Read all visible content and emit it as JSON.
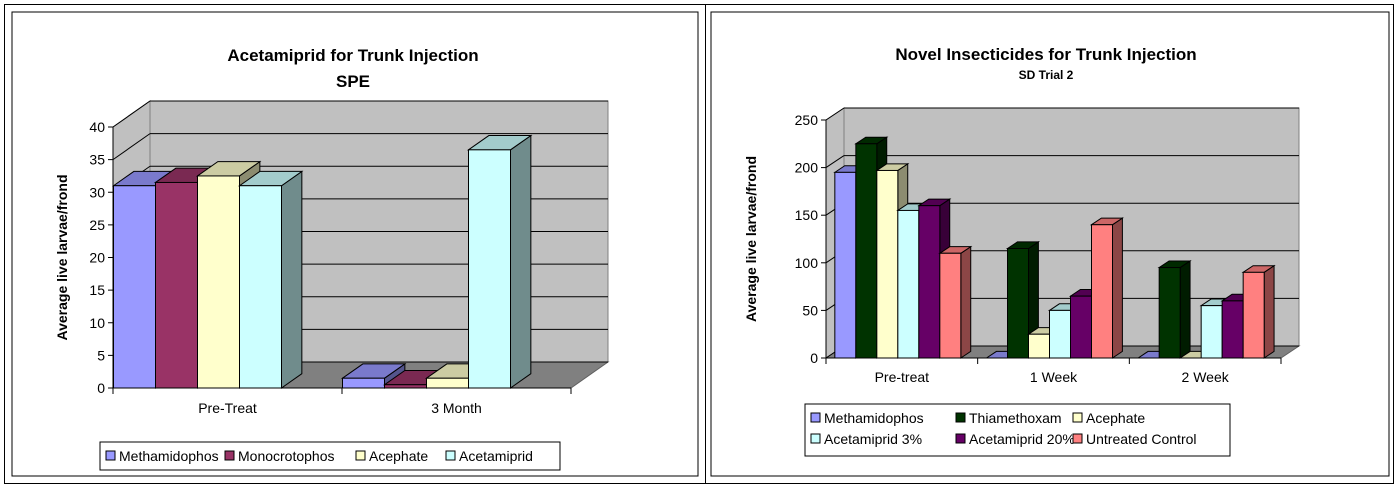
{
  "chart_data": [
    {
      "type": "bar",
      "title": "Acetamiprid for Trunk Injection",
      "subtitle": "SPE",
      "xlabel": "",
      "ylabel": "Average live larvae/frond",
      "ylim": [
        0,
        40
      ],
      "yticks": [
        "0",
        "5",
        "10",
        "15",
        "20",
        "25",
        "30",
        "35",
        "40"
      ],
      "categories": [
        "Pre-Treat",
        "3 Month"
      ],
      "series": [
        {
          "name": "Methamidophos",
          "values": [
            31,
            1.5
          ],
          "color": "#9999FF"
        },
        {
          "name": "Monocrotophos",
          "values": [
            31.5,
            0.5
          ],
          "color": "#993366"
        },
        {
          "name": "Acephate",
          "values": [
            32.5,
            1.5
          ],
          "color": "#FFFFCC"
        },
        {
          "name": "Acetamiprid",
          "values": [
            31,
            36.5
          ],
          "color": "#CCFFFF"
        }
      ],
      "grid": true,
      "legend_position": "bottom"
    },
    {
      "type": "bar",
      "title": "Novel Insecticides for Trunk Injection",
      "subtitle": "SD Trial 2",
      "xlabel": "",
      "ylabel": "Average live larvae/frond",
      "ylim": [
        0,
        250
      ],
      "yticks": [
        "0",
        "50",
        "100",
        "150",
        "200",
        "250"
      ],
      "categories": [
        "Pre-treat",
        "1 Week",
        "2 Week"
      ],
      "series": [
        {
          "name": "Methamidophos",
          "values": [
            195,
            0,
            0
          ],
          "color": "#9999FF"
        },
        {
          "name": "Thiamethoxam",
          "values": [
            225,
            115,
            95
          ],
          "color": "#003300"
        },
        {
          "name": "Acephate",
          "values": [
            197,
            25,
            0
          ],
          "color": "#FFFFCC"
        },
        {
          "name": "Acetamiprid 3%",
          "values": [
            155,
            50,
            55
          ],
          "color": "#CCFFFF"
        },
        {
          "name": "Acetamiprid 20%",
          "values": [
            160,
            65,
            60
          ],
          "color": "#660066"
        },
        {
          "name": "Untreated Control",
          "values": [
            110,
            140,
            90
          ],
          "color": "#FF8080"
        }
      ],
      "grid": true,
      "legend_position": "bottom"
    }
  ]
}
